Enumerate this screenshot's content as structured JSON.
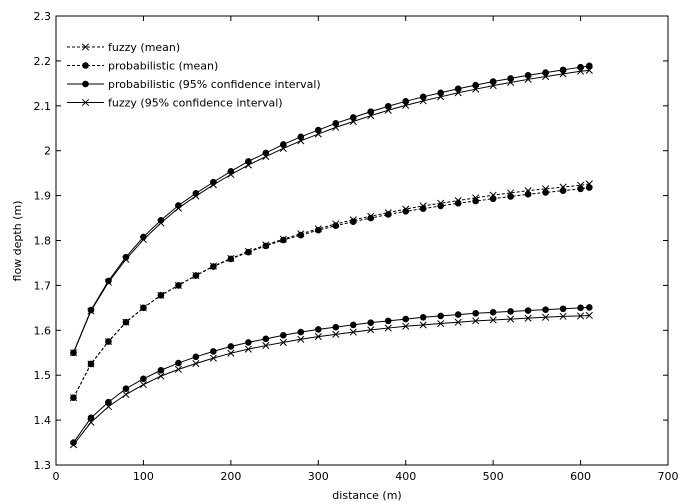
{
  "chart_data": {
    "type": "line",
    "title": "",
    "xlabel": "distance (m)",
    "ylabel": "flow depth (m)",
    "xlim": [
      0,
      700
    ],
    "ylim": [
      1.3,
      2.3
    ],
    "xticks": [
      0,
      100,
      200,
      300,
      400,
      500,
      600,
      700
    ],
    "yticks": [
      1.3,
      1.4,
      1.5,
      1.6,
      1.7,
      1.8,
      1.9,
      2,
      2.1,
      2.2,
      2.3
    ],
    "xtick_labels": [
      "0",
      "100",
      "200",
      "300",
      "400",
      "500",
      "600",
      "700"
    ],
    "ytick_labels": [
      "1.3",
      "1.4",
      "1.5",
      "1.6",
      "1.7",
      "1.8",
      "1.9",
      "2",
      "2.1",
      "2.2",
      "2.3"
    ],
    "grid": false,
    "legend_position": "top-left",
    "x": [
      20,
      40,
      60,
      80,
      100,
      120,
      140,
      160,
      180,
      200,
      220,
      240,
      260,
      280,
      300,
      320,
      340,
      360,
      380,
      400,
      420,
      440,
      460,
      480,
      500,
      520,
      540,
      560,
      580,
      600,
      610
    ],
    "series": [
      {
        "name": "fuzzy (mean)",
        "line_style": "dashed",
        "marker": "x",
        "color": "#000000",
        "values": [
          1.45,
          1.525,
          1.575,
          1.618,
          1.65,
          1.678,
          1.7,
          1.722,
          1.743,
          1.76,
          1.776,
          1.79,
          1.803,
          1.815,
          1.826,
          1.837,
          1.846,
          1.854,
          1.862,
          1.87,
          1.877,
          1.883,
          1.889,
          1.895,
          1.901,
          1.906,
          1.911,
          1.915,
          1.919,
          1.923,
          1.926
        ]
      },
      {
        "name": "probabilistic (mean)",
        "line_style": "dashed",
        "marker": "dot",
        "color": "#000000",
        "values": [
          1.45,
          1.525,
          1.575,
          1.618,
          1.65,
          1.678,
          1.7,
          1.722,
          1.742,
          1.759,
          1.774,
          1.788,
          1.801,
          1.812,
          1.823,
          1.833,
          1.842,
          1.85,
          1.858,
          1.865,
          1.871,
          1.877,
          1.883,
          1.888,
          1.893,
          1.898,
          1.903,
          1.907,
          1.911,
          1.915,
          1.918
        ]
      },
      {
        "name": "probabilistic (95% confidence interval)",
        "line_style": "solid",
        "marker": "dot",
        "color": "#000000",
        "values": [
          1.55,
          1.645,
          1.71,
          1.763,
          1.808,
          1.845,
          1.878,
          1.905,
          1.93,
          1.954,
          1.976,
          1.995,
          2.014,
          2.031,
          2.046,
          2.061,
          2.074,
          2.087,
          2.099,
          2.11,
          2.12,
          2.129,
          2.138,
          2.146,
          2.154,
          2.161,
          2.168,
          2.174,
          2.18,
          2.186,
          2.189
        ]
      },
      {
        "name": "fuzzy (95% confidence interval)",
        "line_style": "solid",
        "marker": "x",
        "color": "#000000",
        "values": [
          1.55,
          1.643,
          1.707,
          1.758,
          1.802,
          1.839,
          1.872,
          1.899,
          1.924,
          1.947,
          1.968,
          1.987,
          2.005,
          2.022,
          2.037,
          2.052,
          2.065,
          2.078,
          2.09,
          2.101,
          2.111,
          2.12,
          2.129,
          2.137,
          2.145,
          2.152,
          2.159,
          2.165,
          2.171,
          2.177,
          2.179
        ]
      },
      {
        "name": "",
        "line_style": "solid",
        "marker": "dot",
        "color": "#000000",
        "values": [
          1.35,
          1.405,
          1.44,
          1.47,
          1.492,
          1.511,
          1.527,
          1.541,
          1.553,
          1.564,
          1.573,
          1.581,
          1.589,
          1.596,
          1.602,
          1.607,
          1.612,
          1.617,
          1.621,
          1.625,
          1.629,
          1.632,
          1.635,
          1.638,
          1.64,
          1.642,
          1.644,
          1.646,
          1.648,
          1.65,
          1.651
        ]
      },
      {
        "name": "",
        "line_style": "solid",
        "marker": "x",
        "color": "#000000",
        "values": [
          1.345,
          1.395,
          1.43,
          1.457,
          1.479,
          1.498,
          1.513,
          1.526,
          1.538,
          1.549,
          1.558,
          1.566,
          1.573,
          1.58,
          1.586,
          1.591,
          1.596,
          1.601,
          1.605,
          1.609,
          1.612,
          1.615,
          1.618,
          1.621,
          1.623,
          1.625,
          1.627,
          1.629,
          1.631,
          1.632,
          1.633
        ]
      }
    ],
    "legend": [
      {
        "label": "fuzzy (mean)",
        "line_style": "dashed",
        "marker": "x"
      },
      {
        "label": "probabilistic (mean)",
        "line_style": "dashed",
        "marker": "dot"
      },
      {
        "label": "probabilistic (95% confidence interval)",
        "line_style": "solid",
        "marker": "dot"
      },
      {
        "label": "fuzzy (95% confidence interval)",
        "line_style": "solid",
        "marker": "x"
      }
    ]
  }
}
